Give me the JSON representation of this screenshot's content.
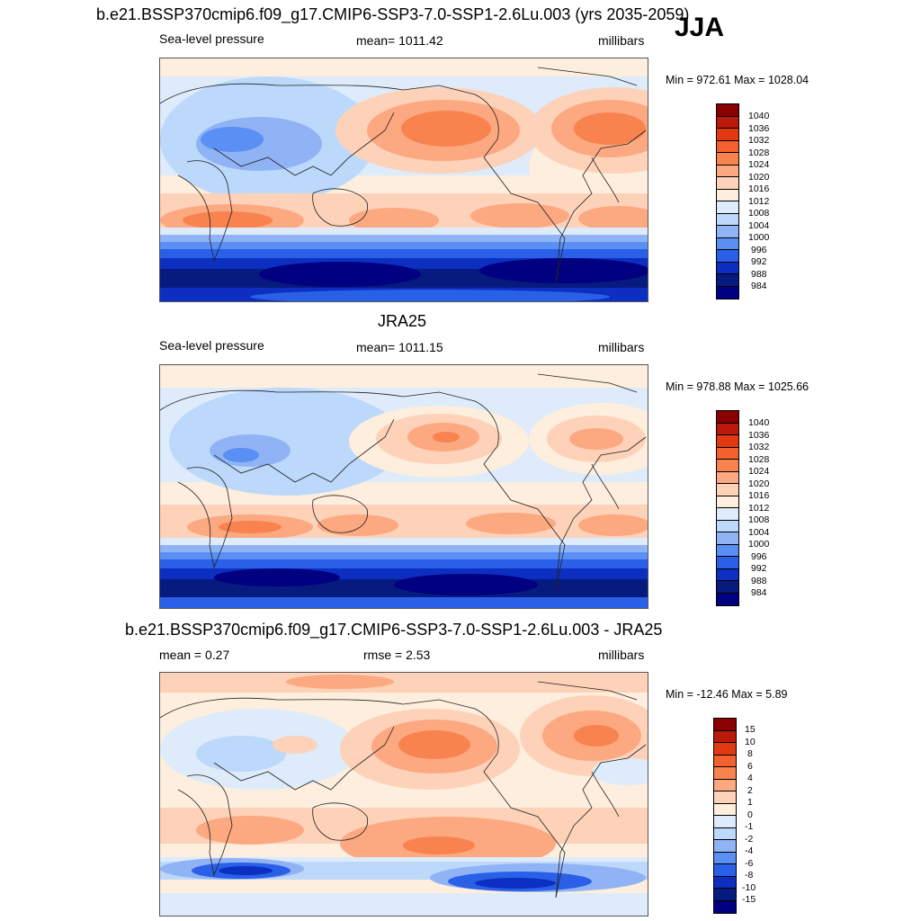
{
  "season": "JJA",
  "panels": [
    {
      "title": "b.e21.BSSP370cmip6.f09_g17.CMIP6-SSP3-7.0-SSP1-2.6Lu.003 (yrs 2035-2059)",
      "left_label": "Sea-level pressure",
      "center_label": "mean= 1011.42",
      "right_label": "millibars",
      "minmax": "Min = 972.61 Max = 1028.04",
      "colorbar": [
        "1040",
        "1036",
        "1032",
        "1028",
        "1024",
        "1020",
        "1016",
        "1012",
        "1008",
        "1004",
        "1000",
        "996",
        "992",
        "988",
        "984"
      ]
    },
    {
      "title": "JRA25",
      "left_label": "Sea-level pressure",
      "center_label": "mean= 1011.15",
      "right_label": "millibars",
      "minmax": "Min = 978.88 Max = 1025.66",
      "colorbar": [
        "1040",
        "1036",
        "1032",
        "1028",
        "1024",
        "1020",
        "1016",
        "1012",
        "1008",
        "1004",
        "1000",
        "996",
        "992",
        "988",
        "984"
      ]
    },
    {
      "title": "b.e21.BSSP370cmip6.f09_g17.CMIP6-SSP3-7.0-SSP1-2.6Lu.003 - JRA25",
      "left_label": "mean =   0.27",
      "center_label": "rmse =   2.53",
      "right_label": "millibars",
      "minmax": "Min = -12.46 Max =   5.89",
      "colorbar": [
        "15",
        "10",
        "8",
        "6",
        "4",
        "2",
        "1",
        "0",
        "-1",
        "-2",
        "-4",
        "-6",
        "-8",
        "-10",
        "-15"
      ]
    }
  ],
  "colors": {
    "palette": [
      "#8b0000",
      "#bb1a0a",
      "#e13a12",
      "#f4602e",
      "#f8834f",
      "#fca880",
      "#fdd2b8",
      "#fdeedd",
      "#ddebfa",
      "#bcd8fb",
      "#8fb3f5",
      "#5a8ff3",
      "#2a5fe8",
      "#0c2fc2",
      "#071a7e",
      "#000080"
    ],
    "land_line": "#222222"
  }
}
